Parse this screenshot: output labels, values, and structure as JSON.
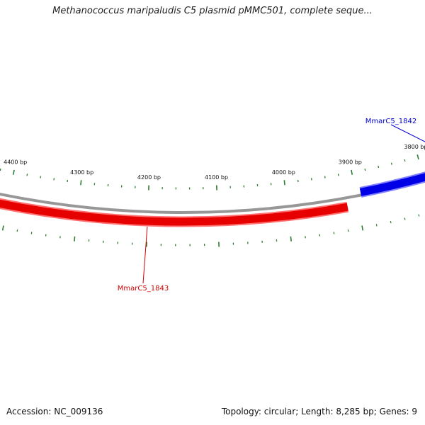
{
  "title": "Methanococcus maripaludis C5 plasmid pMMC501, complete seque...",
  "footer": {
    "accession": "Accession: NC_009136",
    "summary": "Topology: circular; Length: 8,285 bp; Genes: 9"
  },
  "map": {
    "topology": "circular",
    "length_bp": 8285,
    "gene_count": 9,
    "colors": {
      "backbone": "#8c8c8c",
      "ticks": "#2e7d32",
      "forward_gene": "#0000e6",
      "reverse_gene": "#e60000"
    },
    "scale_labels": [
      {
        "bp": 3800,
        "text": "3800 bp"
      },
      {
        "bp": 3900,
        "text": "3900 bp"
      },
      {
        "bp": 4000,
        "text": "4000 bp"
      },
      {
        "bp": 4100,
        "text": "4100 bp"
      },
      {
        "bp": 4200,
        "text": "4200 bp"
      },
      {
        "bp": 4300,
        "text": "4300 bp"
      },
      {
        "bp": 4400,
        "text": "4400 bp"
      }
    ],
    "genes": [
      {
        "name": "MmarC5_1842",
        "strand": "forward",
        "start_bp": 3700,
        "end_bp": 3893,
        "color": "#0000cc"
      },
      {
        "name": "MmarC5_1843",
        "strand": "reverse",
        "start_bp": 3915,
        "end_bp": 4560,
        "color": "#cc0000"
      }
    ]
  }
}
